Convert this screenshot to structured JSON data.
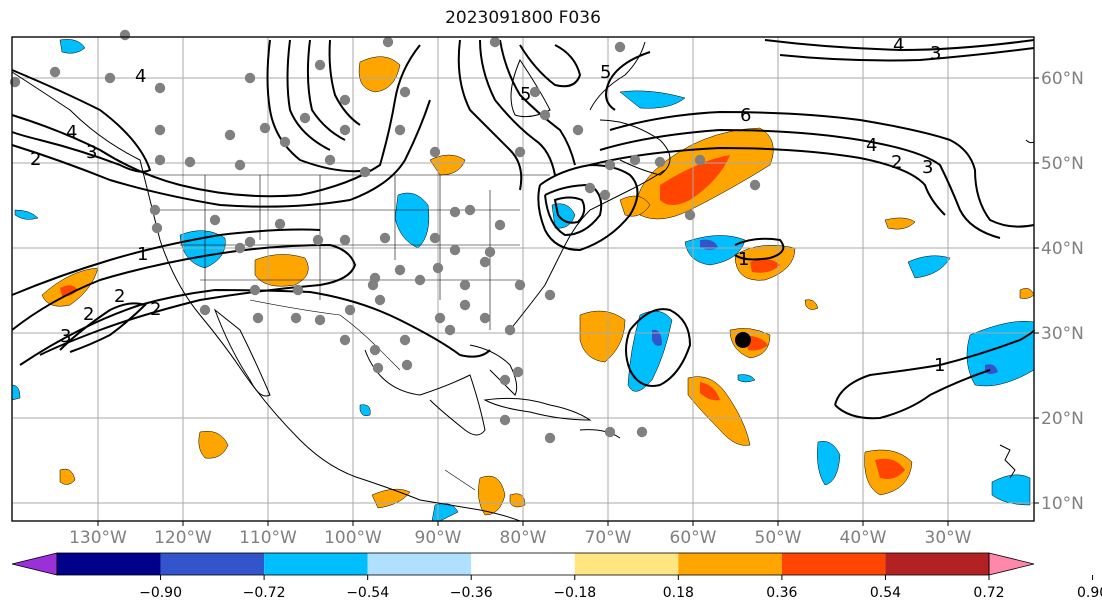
{
  "title": "2023091800 F036",
  "lon_labels": [
    "130°W",
    "120°W",
    "110°W",
    "100°W",
    "90°W",
    "80°W",
    "70°W",
    "60°W",
    "50°W",
    "40°W",
    "30°W"
  ],
  "lat_labels": [
    "60°N",
    "50°N",
    "40°N",
    "30°N",
    "20°N",
    "10°N"
  ],
  "colorbar": {
    "ticks": [
      "−0.90",
      "−0.72",
      "−0.54",
      "−0.36",
      "−0.18",
      "0.18",
      "0.36",
      "0.54",
      "0.72",
      "0.90"
    ],
    "colors": [
      "#9b30d8",
      "#00008b",
      "#3355cc",
      "#00bfff",
      "#b0e0ff",
      "#ffffff",
      "#ffe680",
      "#ffa500",
      "#ff4500",
      "#b22222",
      "#ff88aa"
    ]
  },
  "contour_labels": [
    "6",
    "4",
    "4",
    "2",
    "3",
    "4",
    "2",
    "3",
    "1",
    "1",
    "1",
    "2",
    "3",
    "2",
    "4",
    "5",
    "5",
    "2",
    "3"
  ],
  "colors": {
    "contour": "#000000",
    "grid": "#a9a9a9",
    "tick_label": "#808080",
    "obs_dot": "#808080",
    "marker": "#000000"
  }
}
